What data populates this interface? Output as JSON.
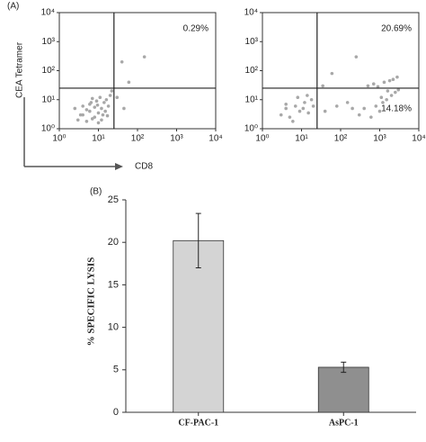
{
  "flow_axes": {
    "xlabel": "CD8",
    "ylabel": "CEA Tetramer"
  },
  "chart_data": [
    {
      "type": "scatter",
      "panel": "(A)",
      "color": "#a8a8a8",
      "log_scale": true,
      "xlim": [
        1,
        10000
      ],
      "ylim": [
        1,
        10000
      ],
      "xticks": [
        {
          "value": 1,
          "label": "10⁰"
        },
        {
          "value": 10,
          "label": "10¹"
        },
        {
          "value": 100,
          "label": "10²"
        },
        {
          "value": 1000,
          "label": "10³"
        },
        {
          "value": 10000,
          "label": "10⁴"
        }
      ],
      "yticks": [
        {
          "value": 1,
          "label": "10⁰"
        },
        {
          "value": 10,
          "label": "10¹"
        },
        {
          "value": 100,
          "label": "10²"
        },
        {
          "value": 1000,
          "label": "10³"
        },
        {
          "value": 10000,
          "label": "10⁴"
        }
      ],
      "gates": {
        "x": 25,
        "y": 25
      },
      "annotations": [
        {
          "text": "0.29%",
          "quadrant": "upper-right"
        }
      ],
      "x": [
        3,
        4,
        5,
        6,
        8,
        10,
        12,
        15,
        18,
        4,
        6,
        7,
        9,
        11,
        14,
        5,
        8,
        10,
        13,
        16,
        20,
        3.5,
        6.5,
        9.5,
        12,
        22,
        30,
        45,
        60,
        150,
        40,
        2.5,
        7,
        17
      ],
      "y": [
        2,
        3,
        1.8,
        4,
        2.5,
        3.5,
        5,
        4,
        6,
        6,
        7,
        2.2,
        9,
        12,
        8,
        4.5,
        5.5,
        1.6,
        3,
        10,
        14,
        3,
        8,
        6.5,
        2,
        20,
        12,
        5,
        40,
        300,
        200,
        5,
        11,
        2.8
      ]
    },
    {
      "type": "scatter",
      "color": "#a8a8a8",
      "log_scale": true,
      "xlim": [
        1,
        10000
      ],
      "ylim": [
        1,
        10000
      ],
      "xticks": [
        {
          "value": 1,
          "label": "10⁰"
        },
        {
          "value": 10,
          "label": "10¹"
        },
        {
          "value": 100,
          "label": "10²"
        },
        {
          "value": 1000,
          "label": "10³"
        },
        {
          "value": 10000,
          "label": "10⁴"
        }
      ],
      "yticks": [
        {
          "value": 1,
          "label": "10⁰"
        },
        {
          "value": 10,
          "label": "10¹"
        },
        {
          "value": 100,
          "label": "10²"
        },
        {
          "value": 1000,
          "label": "10³"
        },
        {
          "value": 10000,
          "label": "10⁴"
        }
      ],
      "gates": {
        "x": 25,
        "y": 25
      },
      "annotations": [
        {
          "text": "20.69%",
          "quadrant": "upper-right"
        },
        {
          "text": "14.18%",
          "quadrant": "lower-right"
        }
      ],
      "x": [
        3,
        4,
        5,
        7,
        9,
        12,
        15,
        18,
        4,
        6,
        8,
        11,
        14,
        20,
        300,
        400,
        600,
        800,
        1000,
        1200,
        1500,
        2000,
        2500,
        3000,
        500,
        700,
        900,
        1300,
        1800,
        2200,
        2800,
        1100,
        1600,
        40,
        80,
        150,
        60,
        200,
        35,
        250
      ],
      "y": [
        3,
        5,
        2.5,
        6,
        4,
        8,
        3.5,
        10,
        7,
        1.8,
        12,
        5,
        14,
        6,
        3,
        5,
        2.5,
        6,
        4,
        8,
        10,
        14,
        18,
        22,
        30,
        35,
        28,
        40,
        45,
        50,
        60,
        12,
        20,
        4,
        6,
        8,
        80,
        5,
        30,
        300
      ]
    },
    {
      "type": "bar",
      "panel": "(B)",
      "categories": [
        "CF-PAC-1",
        "AsPC-1"
      ],
      "values": [
        20.2,
        5.3
      ],
      "errors": [
        3.2,
        0.6
      ],
      "colors": [
        "#d4d4d4",
        "#8f8f8f"
      ],
      "ylabel": "% SPECIFIC LYSIS",
      "ylim": [
        0,
        25
      ],
      "yticks": [
        0,
        5,
        10,
        15,
        20,
        25
      ]
    }
  ]
}
